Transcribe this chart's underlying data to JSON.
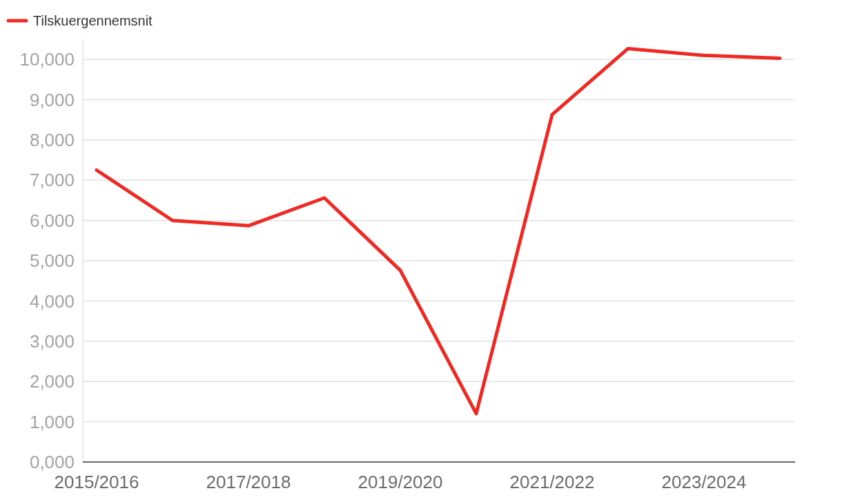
{
  "chart_data": {
    "type": "line",
    "categories": [
      "2015/2016",
      null,
      "2017/2018",
      null,
      "2019/2020",
      null,
      "2021/2022",
      null,
      "2023/2024",
      null
    ],
    "series": [
      {
        "name": "Tilskuergennemsnit",
        "color": "#ee2a24",
        "values": [
          7250,
          6000,
          5870,
          6560,
          4760,
          1200,
          8630,
          10270,
          10100,
          10030
        ]
      }
    ],
    "ylim": [
      0,
      10500
    ],
    "yticks": [
      {
        "value": 0,
        "label": "0,000"
      },
      {
        "value": 1000,
        "label": "1,000"
      },
      {
        "value": 2000,
        "label": "2,000"
      },
      {
        "value": 3000,
        "label": "3,000"
      },
      {
        "value": 4000,
        "label": "4,000"
      },
      {
        "value": 5000,
        "label": "5,000"
      },
      {
        "value": 6000,
        "label": "6,000"
      },
      {
        "value": 7000,
        "label": "7,000"
      },
      {
        "value": 8000,
        "label": "8,000"
      },
      {
        "value": 9000,
        "label": "9,000"
      },
      {
        "value": 10000,
        "label": "10,000"
      }
    ],
    "grid": "y",
    "legend": "top left"
  }
}
